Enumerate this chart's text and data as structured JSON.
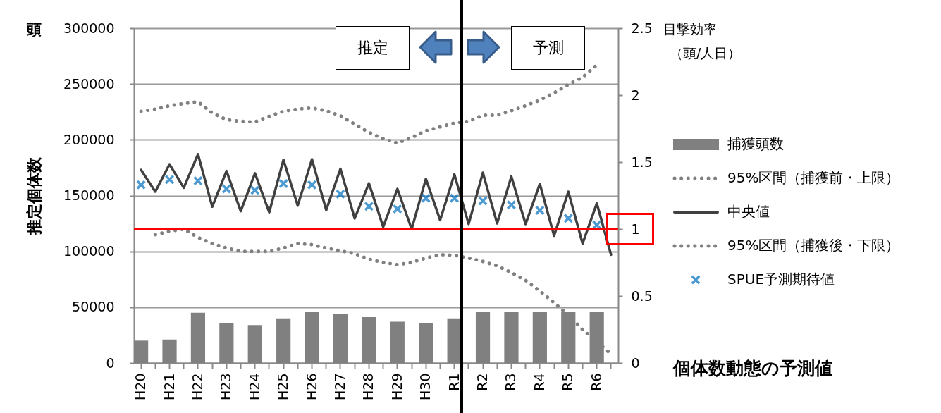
{
  "chart_data": {
    "type": "line",
    "title": "個体数動態の予測値",
    "ylabel": "推定個体数",
    "y2label": "目撃効率",
    "annotations": [
      "頭",
      "推定",
      "予測",
      "（頭/人日）"
    ],
    "categories": [
      "H20",
      null,
      "H21",
      null,
      "H22",
      null,
      "H23",
      null,
      "H24",
      null,
      "H25",
      null,
      "H26",
      null,
      "H27",
      null,
      "H28",
      null,
      "H29",
      null,
      "H30",
      null,
      "R1",
      null,
      "R2",
      null,
      "R3",
      null,
      "R4",
      null,
      "R5",
      null,
      "R6",
      null
    ],
    "ylim": [
      0,
      300000
    ],
    "yticks": [
      0,
      50000,
      100000,
      150000,
      200000,
      250000,
      300000
    ],
    "y2lim": [
      0,
      2.5
    ],
    "y2ticks": [
      0,
      0.5,
      1,
      1.5,
      2,
      2.5
    ],
    "grid": "y",
    "legend": "right",
    "ref_lines": [
      {
        "axis": "y2",
        "value": 1,
        "color": "#ff0000"
      }
    ],
    "series": [
      {
        "type": "bar",
        "name": "捕獲頭数",
        "color": "#808080",
        "values": [
          20000,
          null,
          21000,
          null,
          45000,
          null,
          36000,
          null,
          34000,
          null,
          40000,
          null,
          46000,
          null,
          44000,
          null,
          41000,
          null,
          37000,
          null,
          36000,
          null,
          40000,
          null,
          46000,
          null,
          46000,
          null,
          46000,
          null,
          46000,
          null,
          46000,
          null
        ]
      },
      {
        "type": "line",
        "name": "95%区間（捕獲前・上限）",
        "color": "#808080",
        "line_style": "dotted",
        "values": [
          225500,
          227500,
          230500,
          232500,
          234000,
          224000,
          218000,
          216500,
          216000,
          221000,
          225500,
          227500,
          228500,
          226000,
          221500,
          214000,
          206500,
          201000,
          197000,
          202000,
          208000,
          211500,
          215000,
          216500,
          222000,
          222000,
          226000,
          230500,
          235500,
          242000,
          249500,
          256000,
          267000,
          null
        ]
      },
      {
        "name": "中央値",
        "color": "#404040",
        "line_style": "solid",
        "values": [
          173000,
          153500,
          178000,
          157000,
          187000,
          140000,
          172000,
          136000,
          170000,
          135000,
          182000,
          141000,
          182500,
          137000,
          174000,
          129500,
          161000,
          122000,
          156000,
          120000,
          165000,
          128000,
          169000,
          124500,
          170500,
          125000,
          167000,
          124500,
          160500,
          114000,
          153500,
          107000,
          143000,
          97000
        ]
      },
      {
        "type": "line",
        "name": "95%区間（捕獲後・下限）",
        "color": "#808080",
        "line_style": "dotted",
        "values": [
          null,
          115000,
          118000,
          120000,
          112500,
          107000,
          103000,
          100000,
          100000,
          100000,
          103000,
          107000,
          106000,
          103000,
          100500,
          98000,
          93000,
          90000,
          88000,
          90000,
          94000,
          97000,
          96500,
          94000,
          91000,
          87000,
          81000,
          74000,
          64500,
          54000,
          43000,
          30000,
          19000,
          8000
        ]
      },
      {
        "type": "scatter",
        "name": "SPUE予測期待値",
        "color": "#0070c0",
        "marker": "cross",
        "axis": "y2",
        "values": [
          1.33,
          null,
          1.37,
          null,
          1.36,
          null,
          1.3,
          null,
          1.29,
          null,
          1.34,
          null,
          1.33,
          null,
          1.26,
          null,
          1.17,
          null,
          1.15,
          null,
          1.23,
          null,
          1.23,
          null,
          1.21,
          null,
          1.18,
          null,
          1.14,
          null,
          1.08,
          null,
          1.03,
          null
        ]
      }
    ]
  }
}
